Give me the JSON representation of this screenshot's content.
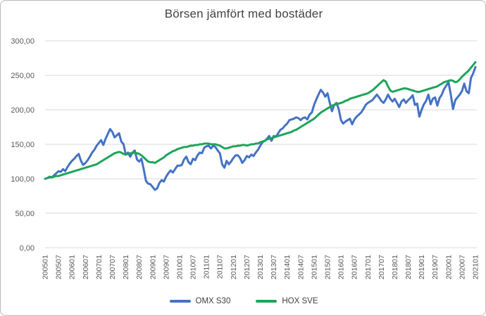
{
  "window": {
    "background_color": "#ffffff",
    "border_color": "#b9b9b9"
  },
  "chart_data": {
    "type": "line",
    "title": "Börsen jämfört med bostäder",
    "title_color": "#424242",
    "xlabel": "",
    "ylabel": "",
    "ylim": [
      0,
      300
    ],
    "grid": true,
    "gridline_color": "#d9d9d9",
    "tick_label_color": "#595959",
    "legend_position": "bottom",
    "y_tick_labels": [
      "300,00",
      "250,00",
      "200,00",
      "150,00",
      "100,00",
      "50,00",
      "0,00"
    ],
    "y_tick_values": [
      300,
      250,
      200,
      150,
      100,
      50,
      0
    ],
    "x_tick_labels": [
      "200501",
      "200507",
      "200601",
      "200607",
      "200701",
      "200707",
      "200801",
      "200807",
      "200901",
      "200907",
      "201001",
      "201007",
      "201101",
      "201107",
      "201201",
      "201207",
      "201301",
      "201307",
      "201401",
      "201407",
      "201501",
      "201507",
      "201601",
      "201607",
      "201701",
      "201707",
      "201801",
      "201807",
      "201901",
      "201907",
      "202001",
      "202007",
      "202101"
    ],
    "x_tick_every_n_months": 6,
    "x_start": "200501",
    "x_end": "202101",
    "series": [
      {
        "name": "OMX S30",
        "color": "#4472c4",
        "values": [
          100,
          101,
          103,
          102,
          105,
          108,
          111,
          110,
          114,
          111,
          117,
          122,
          126,
          129,
          133,
          136,
          126,
          120,
          123,
          127,
          132,
          138,
          142,
          148,
          152,
          156,
          149,
          158,
          165,
          172,
          168,
          160,
          163,
          166,
          154,
          150,
          135,
          138,
          132,
          138,
          141,
          128,
          125,
          129,
          114,
          97,
          93,
          92,
          88,
          84,
          86,
          94,
          98,
          96,
          103,
          108,
          112,
          109,
          114,
          119,
          119,
          120,
          128,
          132,
          124,
          121,
          129,
          127,
          134,
          138,
          137,
          145,
          147,
          148,
          144,
          148,
          146,
          141,
          137,
          121,
          116,
          126,
          121,
          125,
          130,
          134,
          134,
          130,
          123,
          127,
          133,
          131,
          135,
          133,
          138,
          142,
          148,
          153,
          155,
          158,
          162,
          155,
          162,
          161,
          166,
          171,
          173,
          177,
          180,
          185,
          186,
          187,
          189,
          188,
          185,
          188,
          189,
          186,
          193,
          196,
          207,
          215,
          222,
          229,
          225,
          219,
          224,
          210,
          198,
          207,
          210,
          201,
          185,
          180,
          183,
          185,
          187,
          179,
          186,
          190,
          193,
          196,
          201,
          207,
          210,
          212,
          214,
          218,
          222,
          218,
          213,
          210,
          215,
          222,
          216,
          212,
          216,
          210,
          204,
          212,
          215,
          210,
          214,
          217,
          221,
          207,
          209,
          190,
          200,
          208,
          213,
          222,
          208,
          216,
          218,
          206,
          217,
          222,
          230,
          235,
          240,
          222,
          201,
          214,
          218,
          222,
          227,
          238,
          227,
          224,
          246,
          253,
          262
        ]
      },
      {
        "name": "HOX SVE",
        "color": "#1ea45a",
        "values": [
          100,
          101,
          102,
          102,
          103,
          104,
          104,
          105,
          106,
          107,
          108,
          109,
          110,
          111,
          112,
          113,
          114,
          115,
          116,
          117,
          118,
          119,
          120,
          121,
          123,
          125,
          127,
          129,
          131,
          133,
          135,
          137,
          138,
          139,
          138,
          136,
          135,
          136,
          137,
          137,
          138,
          137,
          136,
          134,
          131,
          128,
          125,
          124,
          124,
          123,
          125,
          127,
          129,
          131,
          134,
          136,
          138,
          140,
          141,
          143,
          144,
          145,
          146,
          146,
          147,
          148,
          148,
          149,
          149,
          150,
          150,
          151,
          151,
          151,
          150,
          150,
          150,
          149,
          148,
          146,
          144,
          144,
          145,
          146,
          147,
          147,
          148,
          148,
          149,
          149,
          148,
          149,
          150,
          150,
          151,
          151,
          153,
          154,
          155,
          157,
          158,
          159,
          160,
          161,
          162,
          163,
          164,
          165,
          166,
          167,
          168,
          170,
          171,
          173,
          175,
          177,
          179,
          181,
          183,
          185,
          187,
          190,
          193,
          196,
          198,
          200,
          202,
          204,
          206,
          207,
          208,
          209,
          210,
          211,
          213,
          214,
          216,
          217,
          218,
          219,
          220,
          221,
          222,
          223,
          224,
          226,
          228,
          231,
          234,
          237,
          240,
          243,
          241,
          234,
          228,
          226,
          227,
          228,
          229,
          230,
          231,
          231,
          230,
          229,
          228,
          227,
          226,
          226,
          227,
          228,
          229,
          230,
          231,
          232,
          233,
          234,
          236,
          238,
          240,
          241,
          242,
          243,
          242,
          240,
          241,
          244,
          248,
          251,
          254,
          257,
          261,
          265,
          269
        ]
      }
    ]
  },
  "legend": {
    "omx_label": "OMX S30",
    "hox_label": "HOX SVE"
  }
}
